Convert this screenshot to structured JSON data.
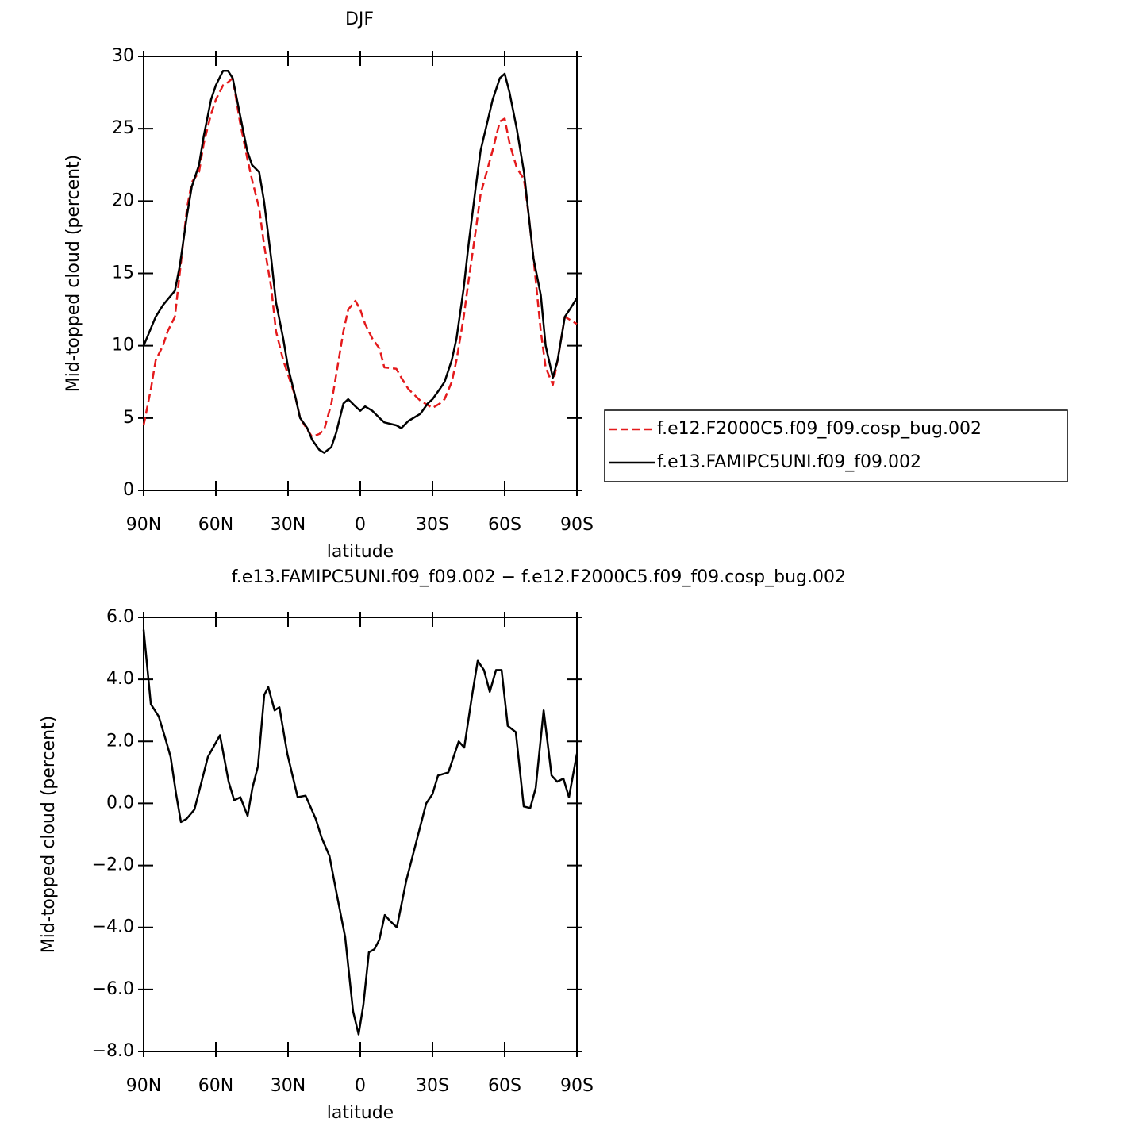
{
  "chart_data": [
    {
      "type": "line",
      "title": "DJF",
      "xlabel": "latitude",
      "ylabel": "Mid-topped cloud (percent)",
      "x": [
        90,
        87,
        85,
        82,
        80,
        77,
        75,
        72,
        70,
        67,
        65,
        62,
        60,
        57,
        55,
        53,
        50,
        47,
        45,
        42,
        40,
        37,
        35,
        32,
        30,
        27,
        25,
        22,
        20,
        17,
        15,
        12,
        10,
        7,
        5,
        2,
        0,
        -2,
        -5,
        -8,
        -10,
        -15,
        -17,
        -20,
        -25,
        -28,
        -30,
        -33,
        -35,
        -38,
        -40,
        -43,
        -45,
        -48,
        -50,
        -55,
        -58,
        -60,
        -62,
        -65,
        -68,
        -70,
        -72,
        -75,
        -77,
        -80,
        -82,
        -85,
        -87,
        -90
      ],
      "series": [
        {
          "name": "f.e12.F2000C5.f09_f09.cosp_bug.002",
          "color": "#e41a1c",
          "dashed": true,
          "values": [
            4.5,
            7,
            9,
            10,
            11,
            12,
            15,
            19.5,
            21.3,
            22,
            24,
            26,
            27,
            28,
            28.2,
            28.5,
            25.5,
            23,
            21.5,
            19.5,
            17,
            14,
            11,
            9,
            8,
            6.5,
            5,
            4.2,
            3.7,
            3.9,
            4.2,
            6,
            8,
            11,
            12.5,
            13.1,
            12.5,
            11.5,
            10.5,
            9.8,
            8.5,
            8.4,
            7.8,
            7,
            6.2,
            5.9,
            5.7,
            6,
            6.3,
            7.5,
            9,
            12,
            14.5,
            18,
            20.5,
            23.5,
            25.5,
            25.7,
            24,
            22.3,
            21.5,
            19,
            16,
            11,
            8.5,
            7.3,
            9,
            12,
            11.8,
            11.5
          ]
        },
        {
          "name": "f.e13.FAMIPC5UNI.f09_f09.002",
          "color": "#000000",
          "dashed": false,
          "values": [
            10,
            11.2,
            12,
            12.8,
            13.2,
            13.8,
            15.5,
            19,
            21,
            22.5,
            24.5,
            27,
            28,
            29,
            29,
            28.5,
            26,
            23.5,
            22.5,
            22,
            20,
            16,
            13,
            10.5,
            8.5,
            6.5,
            5,
            4.3,
            3.5,
            2.8,
            2.6,
            3,
            4,
            6,
            6.3,
            5.8,
            5.5,
            5.8,
            5.5,
            5,
            4.7,
            4.5,
            4.3,
            4.8,
            5.3,
            6,
            6.3,
            7,
            7.5,
            9,
            10.5,
            14,
            17,
            21,
            23.5,
            27,
            28.5,
            28.8,
            27.5,
            25,
            22,
            19,
            16,
            13.5,
            10,
            7.8,
            9,
            12,
            12.5,
            13.3
          ]
        }
      ],
      "xlim": [
        90,
        -90
      ],
      "xticks": [
        {
          "value": 90,
          "label": "90N"
        },
        {
          "value": 60,
          "label": "60N"
        },
        {
          "value": 30,
          "label": "30N"
        },
        0,
        {
          "value": -30,
          "label": "30S"
        },
        {
          "value": -60,
          "label": "60S"
        },
        {
          "value": -90,
          "label": "90S"
        }
      ],
      "ylim": [
        0,
        30
      ],
      "yticks": [
        0,
        5,
        10,
        15,
        20,
        25,
        30
      ],
      "legend": "right"
    },
    {
      "type": "line",
      "title": "f.e13.FAMIPC5UNI.f09_f09.002 − f.e12.F2000C5.f09_f09.cosp_bug.002",
      "xlabel": "latitude",
      "ylabel": "Mid-topped cloud (percent)",
      "x": [
        90,
        87,
        83.7,
        81,
        78.8,
        76.5,
        74.5,
        72.2,
        68.9,
        66.6,
        63.3,
        58.3,
        54.7,
        52.4,
        49.8,
        46.8,
        44.8,
        42.5,
        39.9,
        38.2,
        35.6,
        33.6,
        30.3,
        26,
        22.7,
        18.5,
        16.1,
        12.8,
        9.6,
        6.3,
        3,
        0.7,
        -1.3,
        -3.6,
        -5.9,
        -7.9,
        -10.2,
        -12.5,
        -15.2,
        -19.1,
        -23.4,
        -27.4,
        -30,
        -32.3,
        -36.6,
        -40.9,
        -43.2,
        -46.5,
        -48.8,
        -51.4,
        -53.8,
        -56.4,
        -58.7,
        -61.3,
        -64.6,
        -67.9,
        -70.6,
        -72.9,
        -76.2,
        -79.5,
        -81.8,
        -84.4,
        -86.7,
        -90
      ],
      "series": [
        {
          "color": "#000000",
          "dashed": false,
          "values": [
            5.6,
            3.2,
            2.8,
            2.1,
            1.5,
            0.3,
            -0.6,
            -0.5,
            -0.2,
            0.5,
            1.5,
            2.2,
            0.7,
            0.1,
            0.2,
            -0.4,
            0.5,
            1.2,
            3.5,
            3.75,
            3.0,
            3.1,
            1.6,
            0.2,
            0.25,
            -0.5,
            -1.1,
            -1.7,
            -3.0,
            -4.3,
            -6.7,
            -7.45,
            -6.5,
            -4.8,
            -4.7,
            -4.4,
            -3.6,
            -3.8,
            -4.0,
            -2.5,
            -1.2,
            0.0,
            0.3,
            0.9,
            1.0,
            2.0,
            1.8,
            3.5,
            4.6,
            4.3,
            3.6,
            4.3,
            4.3,
            2.5,
            2.3,
            -0.1,
            -0.15,
            0.5,
            3.0,
            0.9,
            0.7,
            0.8,
            0.2,
            1.6
          ]
        }
      ],
      "xlim": [
        90,
        -90
      ],
      "xticks": [
        {
          "value": 90,
          "label": "90N"
        },
        {
          "value": 60,
          "label": "60N"
        },
        {
          "value": 30,
          "label": "30N"
        },
        0,
        {
          "value": -30,
          "label": "30S"
        },
        {
          "value": -60,
          "label": "60S"
        },
        {
          "value": -90,
          "label": "90S"
        }
      ],
      "ylim": [
        -8,
        6
      ],
      "yticks": [
        {
          "value": -8,
          "label": "−8.0"
        },
        {
          "value": -6,
          "label": "−6.0"
        },
        {
          "value": -4,
          "label": "−4.0"
        },
        {
          "value": -2,
          "label": "−2.0"
        },
        {
          "value": 0,
          "label": "0.0"
        },
        {
          "value": 2,
          "label": "2.0"
        },
        {
          "value": 4,
          "label": "4.0"
        },
        {
          "value": 6,
          "label": "6.0"
        }
      ]
    }
  ]
}
